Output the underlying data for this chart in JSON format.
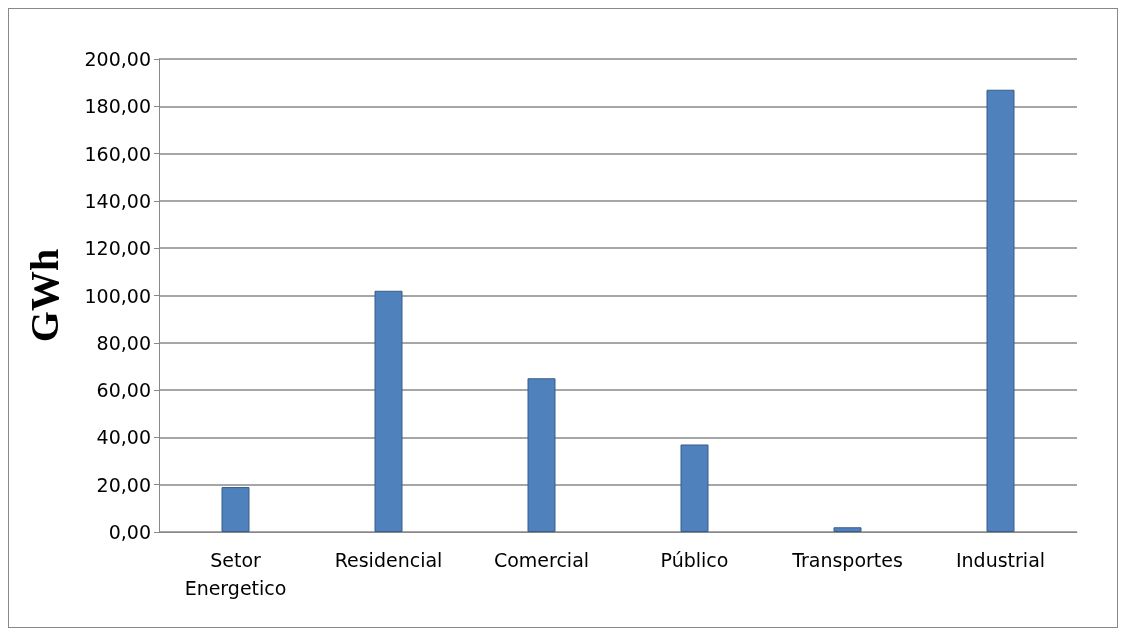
{
  "chart_data": {
    "type": "bar",
    "ylabel": "GWh",
    "categories": [
      "Setor\nEnergetico",
      "Residencial",
      "Comercial",
      "Público",
      "Transportes",
      "Industrial"
    ],
    "values": [
      19,
      102,
      65,
      37,
      2,
      187
    ],
    "color": "#4f81bd",
    "ylim": [
      0,
      200
    ],
    "yticks": [
      {
        "value": 0,
        "label": "0,00"
      },
      {
        "value": 20,
        "label": "20,00"
      },
      {
        "value": 40,
        "label": "40,00"
      },
      {
        "value": 60,
        "label": "60,00"
      },
      {
        "value": 80,
        "label": "80,00"
      },
      {
        "value": 100,
        "label": "100,00"
      },
      {
        "value": 120,
        "label": "120,00"
      },
      {
        "value": 140,
        "label": "140,00"
      },
      {
        "value": 160,
        "label": "160,00"
      },
      {
        "value": 180,
        "label": "180,00"
      },
      {
        "value": 200,
        "label": "200,00"
      }
    ],
    "grid": true
  }
}
